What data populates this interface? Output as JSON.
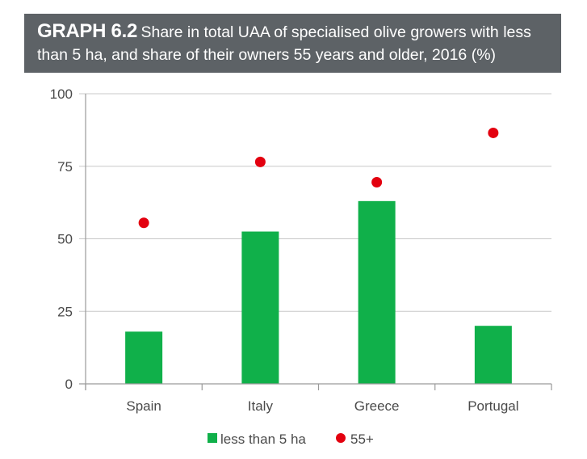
{
  "title": {
    "label": "GRAPH 6.2",
    "text": "Share in total UAA of specialised olive growers with less than 5 ha, and share of their owners 55 years and older, 2016 (%)"
  },
  "colors": {
    "banner": "#5d6266",
    "bar": "#10b04a",
    "dot": "#e3000f",
    "grid": "#c8c8c8",
    "axis": "#9a9a9a"
  },
  "chart_data": {
    "type": "bar",
    "categories": [
      "Spain",
      "Italy",
      "Greece",
      "Portugal"
    ],
    "series": [
      {
        "name": "less than 5 ha",
        "kind": "bar",
        "values": [
          18,
          52.5,
          63,
          20
        ]
      },
      {
        "name": "55+",
        "kind": "dot",
        "values": [
          55.5,
          76.5,
          69.5,
          86.5
        ]
      }
    ],
    "yticks": [
      "0",
      "25",
      "50",
      "75",
      "100"
    ],
    "ylim": [
      0,
      100
    ],
    "grid": true,
    "legend_position": "bottom-center"
  }
}
